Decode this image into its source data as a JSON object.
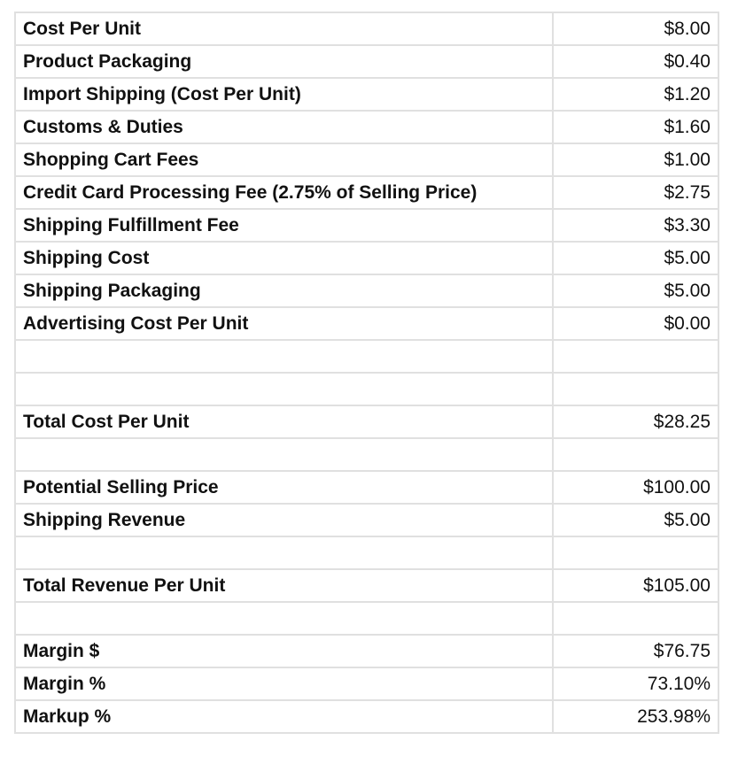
{
  "rows": [
    {
      "label": "Cost Per Unit",
      "value": "$8.00"
    },
    {
      "label": "Product Packaging",
      "value": "$0.40"
    },
    {
      "label": "Import Shipping (Cost Per Unit)",
      "value": "$1.20"
    },
    {
      "label": "Customs & Duties",
      "value": "$1.60"
    },
    {
      "label": "Shopping Cart Fees",
      "value": "$1.00"
    },
    {
      "label": "Credit Card Processing Fee (2.75% of Selling Price)",
      "value": "$2.75"
    },
    {
      "label": "Shipping Fulfillment Fee",
      "value": "$3.30"
    },
    {
      "label": "Shipping Cost",
      "value": "$5.00"
    },
    {
      "label": "Shipping Packaging",
      "value": "$5.00"
    },
    {
      "label": "Advertising Cost Per Unit",
      "value": "$0.00"
    },
    {
      "label": "",
      "value": ""
    },
    {
      "label": "",
      "value": ""
    },
    {
      "label": "Total Cost Per Unit",
      "value": "$28.25"
    },
    {
      "label": "",
      "value": ""
    },
    {
      "label": "Potential Selling Price",
      "value": "$100.00"
    },
    {
      "label": "Shipping Revenue",
      "value": "$5.00"
    },
    {
      "label": "",
      "value": ""
    },
    {
      "label": "Total Revenue Per Unit",
      "value": "$105.00"
    },
    {
      "label": "",
      "value": ""
    },
    {
      "label": "Margin $",
      "value": "$76.75"
    },
    {
      "label": "Margin %",
      "value": "73.10%"
    },
    {
      "label": "Markup %",
      "value": "253.98%"
    }
  ]
}
